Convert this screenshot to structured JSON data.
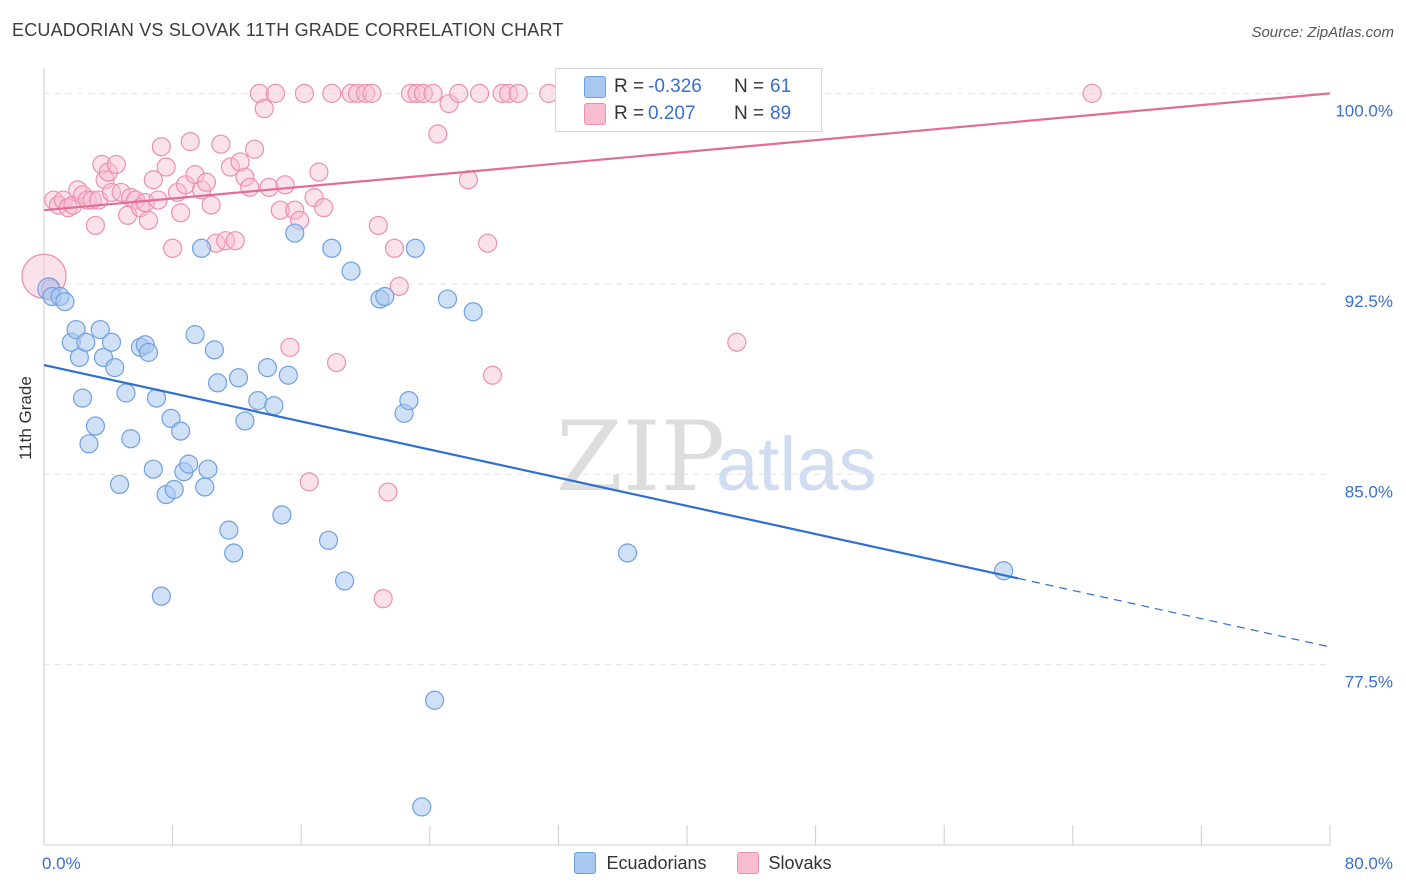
{
  "header": {
    "title": "ECUADORIAN VS SLOVAK 11TH GRADE CORRELATION CHART",
    "source": "Source: ZipAtlas.com"
  },
  "stats": {
    "ecuadorians": {
      "r_label": "R =",
      "r_value": "-0.326",
      "n_label": "N =",
      "n_value": "61"
    },
    "slovaks": {
      "r_label": "R =",
      "r_value": "0.207",
      "n_label": "N =",
      "n_value": "89"
    }
  },
  "legend": {
    "ecuadorians": "Ecuadorians",
    "slovaks": "Slovaks"
  },
  "colors": {
    "ecuadorian_fill": "#a9c8f0",
    "ecuadorian_stroke": "#6fa0e0",
    "ecuadorian_line": "#2f6fd0",
    "slovak_fill": "#f6bcd0",
    "slovak_stroke": "#ec8fb0",
    "slovak_line": "#e06d98",
    "tick_label": "#3a6fd0"
  },
  "watermark": {
    "zip": "ZIP",
    "atlas": "atlas"
  },
  "chart_data": {
    "type": "scatter",
    "title": "ECUADORIAN VS SLOVAK 11TH GRADE CORRELATION CHART",
    "xlabel": "",
    "ylabel": "11th Grade",
    "xlim": [
      0,
      80
    ],
    "ylim": [
      70.4,
      101.0
    ],
    "x_tick_labels": [
      {
        "value": 0,
        "label": "0.0%"
      },
      {
        "value": 80,
        "label": "80.0%"
      }
    ],
    "y_tick_labels": [
      {
        "value": 100,
        "label": "100.0%"
      },
      {
        "value": 92.5,
        "label": "92.5%"
      },
      {
        "value": 85,
        "label": "85.0%"
      },
      {
        "value": 77.5,
        "label": "77.5%"
      }
    ],
    "grid": true,
    "legend_position": "bottom-center",
    "series": [
      {
        "name": "Ecuadorians",
        "points": [
          [
            0.3,
            92.3
          ],
          [
            0.5,
            92.0
          ],
          [
            1.0,
            92.0
          ],
          [
            1.3,
            91.8
          ],
          [
            1.7,
            90.2
          ],
          [
            2.0,
            90.7
          ],
          [
            2.2,
            89.6
          ],
          [
            2.4,
            88.0
          ],
          [
            2.6,
            90.2
          ],
          [
            2.8,
            86.2
          ],
          [
            3.2,
            86.9
          ],
          [
            3.5,
            90.7
          ],
          [
            3.7,
            89.6
          ],
          [
            4.2,
            90.2
          ],
          [
            4.4,
            89.2
          ],
          [
            4.7,
            84.6
          ],
          [
            5.1,
            88.2
          ],
          [
            5.4,
            86.4
          ],
          [
            6.0,
            90.0
          ],
          [
            6.3,
            90.1
          ],
          [
            6.5,
            89.8
          ],
          [
            6.8,
            85.2
          ],
          [
            7.0,
            88.0
          ],
          [
            7.3,
            80.2
          ],
          [
            7.6,
            84.2
          ],
          [
            7.9,
            87.2
          ],
          [
            8.1,
            84.4
          ],
          [
            8.5,
            86.7
          ],
          [
            8.7,
            85.1
          ],
          [
            9.0,
            85.4
          ],
          [
            9.4,
            90.5
          ],
          [
            9.8,
            93.9
          ],
          [
            10.0,
            84.5
          ],
          [
            10.2,
            85.2
          ],
          [
            10.6,
            89.9
          ],
          [
            10.8,
            88.6
          ],
          [
            11.5,
            82.8
          ],
          [
            11.8,
            81.9
          ],
          [
            12.1,
            88.8
          ],
          [
            12.5,
            87.1
          ],
          [
            13.3,
            87.9
          ],
          [
            13.9,
            89.2
          ],
          [
            14.3,
            87.7
          ],
          [
            14.8,
            83.4
          ],
          [
            15.2,
            88.9
          ],
          [
            15.6,
            94.5
          ],
          [
            17.7,
            82.4
          ],
          [
            17.9,
            93.9
          ],
          [
            18.7,
            80.8
          ],
          [
            19.1,
            93.0
          ],
          [
            20.9,
            91.9
          ],
          [
            21.2,
            92.0
          ],
          [
            22.4,
            87.4
          ],
          [
            22.7,
            87.9
          ],
          [
            23.1,
            93.9
          ],
          [
            23.5,
            71.9
          ],
          [
            24.3,
            76.1
          ],
          [
            25.1,
            91.9
          ],
          [
            26.7,
            91.4
          ],
          [
            36.3,
            81.9
          ],
          [
            59.7,
            81.2
          ]
        ],
        "trend": {
          "x": [
            0,
            60.6
          ],
          "y": [
            89.3,
            80.9
          ],
          "dashed_extension": {
            "x": [
              60.6,
              80
            ],
            "y": [
              80.9,
              78.2
            ]
          }
        }
      },
      {
        "name": "Slovaks",
        "points": [
          [
            0.0,
            92.8
          ],
          [
            0.4,
            92.3
          ],
          [
            0.6,
            95.8
          ],
          [
            0.9,
            95.6
          ],
          [
            1.2,
            95.8
          ],
          [
            1.5,
            95.5
          ],
          [
            1.8,
            95.6
          ],
          [
            2.1,
            96.2
          ],
          [
            2.4,
            96.0
          ],
          [
            2.7,
            95.8
          ],
          [
            3.0,
            95.8
          ],
          [
            3.2,
            94.8
          ],
          [
            3.4,
            95.8
          ],
          [
            3.6,
            97.2
          ],
          [
            3.8,
            96.6
          ],
          [
            4.0,
            96.9
          ],
          [
            4.2,
            96.1
          ],
          [
            4.5,
            97.2
          ],
          [
            4.8,
            96.1
          ],
          [
            5.2,
            95.2
          ],
          [
            5.4,
            95.9
          ],
          [
            5.7,
            95.8
          ],
          [
            6.0,
            95.5
          ],
          [
            6.3,
            95.7
          ],
          [
            6.5,
            95.0
          ],
          [
            6.8,
            96.6
          ],
          [
            7.1,
            95.8
          ],
          [
            7.3,
            97.9
          ],
          [
            7.6,
            97.1
          ],
          [
            8.0,
            93.9
          ],
          [
            8.3,
            96.1
          ],
          [
            8.5,
            95.3
          ],
          [
            8.8,
            96.4
          ],
          [
            9.1,
            98.1
          ],
          [
            9.4,
            96.8
          ],
          [
            9.8,
            96.2
          ],
          [
            10.1,
            96.5
          ],
          [
            10.4,
            95.6
          ],
          [
            10.7,
            94.1
          ],
          [
            11.0,
            98.0
          ],
          [
            11.3,
            94.2
          ],
          [
            11.6,
            97.1
          ],
          [
            11.9,
            94.2
          ],
          [
            12.2,
            97.3
          ],
          [
            12.5,
            96.7
          ],
          [
            12.8,
            96.3
          ],
          [
            13.1,
            97.8
          ],
          [
            13.4,
            100.0
          ],
          [
            13.7,
            99.4
          ],
          [
            14.0,
            96.3
          ],
          [
            14.4,
            100.0
          ],
          [
            14.7,
            95.4
          ],
          [
            15.0,
            96.4
          ],
          [
            15.3,
            90.0
          ],
          [
            15.6,
            95.4
          ],
          [
            15.9,
            95.0
          ],
          [
            16.2,
            100.0
          ],
          [
            16.5,
            84.7
          ],
          [
            16.8,
            95.9
          ],
          [
            17.1,
            96.9
          ],
          [
            17.4,
            95.5
          ],
          [
            17.9,
            100.0
          ],
          [
            18.2,
            89.4
          ],
          [
            19.1,
            100.0
          ],
          [
            19.5,
            100.0
          ],
          [
            20.0,
            100.0
          ],
          [
            20.4,
            100.0
          ],
          [
            20.8,
            94.8
          ],
          [
            21.1,
            80.1
          ],
          [
            21.4,
            84.3
          ],
          [
            21.8,
            93.9
          ],
          [
            22.1,
            92.4
          ],
          [
            22.8,
            100.0
          ],
          [
            23.2,
            100.0
          ],
          [
            23.6,
            100.0
          ],
          [
            24.2,
            100.0
          ],
          [
            24.5,
            98.4
          ],
          [
            25.2,
            99.6
          ],
          [
            25.8,
            100.0
          ],
          [
            26.4,
            96.6
          ],
          [
            27.1,
            100.0
          ],
          [
            27.6,
            94.1
          ],
          [
            27.9,
            88.9
          ],
          [
            28.5,
            100.0
          ],
          [
            28.9,
            100.0
          ],
          [
            29.5,
            100.0
          ],
          [
            31.4,
            100.0
          ],
          [
            43.1,
            90.2
          ],
          [
            65.2,
            100.0
          ]
        ],
        "trend": {
          "x": [
            0,
            80
          ],
          "y": [
            95.4,
            100.0
          ]
        }
      }
    ]
  }
}
